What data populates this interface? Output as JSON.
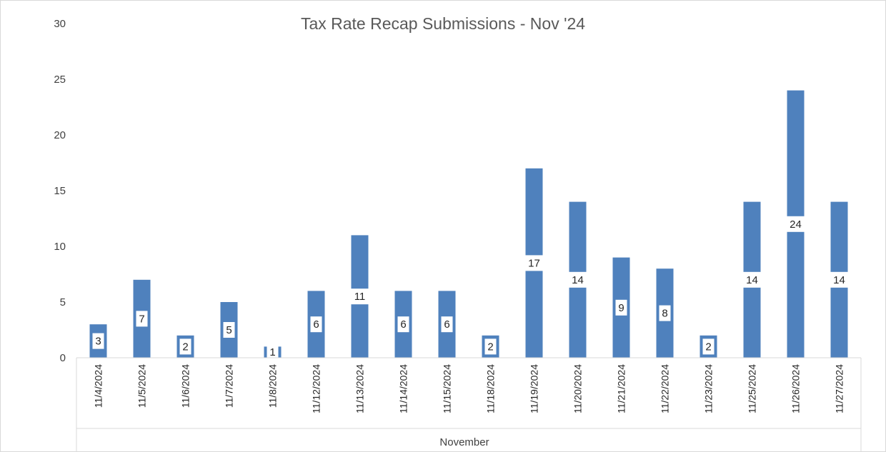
{
  "chart_data": {
    "type": "bar",
    "title": "Tax Rate Recap Submissions - Nov '24",
    "xlabel": "November",
    "ylabel": "",
    "ylim": [
      0,
      30
    ],
    "yticks": [
      0,
      5,
      10,
      15,
      20,
      25,
      30
    ],
    "grid": false,
    "legend": "none",
    "categories": [
      "11/4/2024",
      "11/5/2024",
      "11/6/2024",
      "11/7/2024",
      "11/8/2024",
      "11/12/2024",
      "11/13/2024",
      "11/14/2024",
      "11/15/2024",
      "11/18/2024",
      "11/19/2024",
      "11/20/2024",
      "11/21/2024",
      "11/22/2024",
      "11/23/2024",
      "11/25/2024",
      "11/26/2024",
      "11/27/2024"
    ],
    "values": [
      3,
      7,
      2,
      5,
      1,
      6,
      11,
      6,
      6,
      2,
      17,
      14,
      9,
      8,
      2,
      14,
      24,
      14
    ],
    "colors": {
      "bar": "#4f81bd",
      "label_bg": "#ffffff",
      "axis": "#d9d9d9",
      "border": "#d9d9d9"
    }
  }
}
